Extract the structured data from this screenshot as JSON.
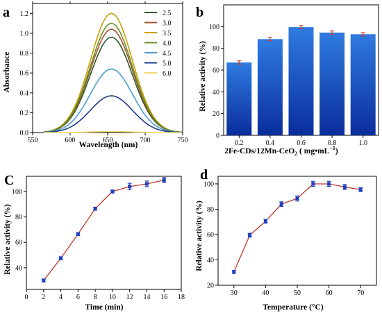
{
  "figure": {
    "panels": [
      {
        "letter": "a"
      },
      {
        "letter": "b"
      },
      {
        "letter": "C"
      },
      {
        "letter": "d"
      }
    ]
  },
  "chart_data": [
    {
      "panel": "a",
      "type": "line",
      "xlabel": "Wavelength (nm)",
      "ylabel": "Absorbance",
      "xlim": [
        550,
        750
      ],
      "ylim": [
        0,
        1.3
      ],
      "xticks": [
        550,
        600,
        650,
        700,
        750
      ],
      "yticks": [
        0.0,
        0.2,
        0.4,
        0.6,
        0.8,
        1.0,
        1.2
      ],
      "ytick_labels": [
        "0.0",
        "0.2",
        "0.4",
        "0.6",
        "0.8",
        "1.0",
        "1.2"
      ],
      "legend_position": "top-right",
      "peak_x": 655,
      "x_start": 565,
      "series": [
        {
          "name": "2.5",
          "color": "#2a5a2a",
          "peak": 0.96
        },
        {
          "name": "3.0",
          "color": "#a0522d",
          "peak": 1.04
        },
        {
          "name": "3.5",
          "color": "#c8a000",
          "peak": 1.2
        },
        {
          "name": "4.0",
          "color": "#6b8e23",
          "peak": 1.1
        },
        {
          "name": "4.5",
          "color": "#4a9cd0",
          "peak": 0.64
        },
        {
          "name": "5.0",
          "color": "#1f3b8a",
          "peak": 0.37
        },
        {
          "name": "6.0",
          "color": "#f5d76e",
          "peak": 0.01
        }
      ]
    },
    {
      "panel": "b",
      "type": "bar",
      "xlabel": "2Fe-CDs/12Mn-CeO",
      "xlabel_sub": "2",
      "xlabel_unit": " ( mg•mL",
      "xlabel_sup": "−1",
      "xlabel_end": ")",
      "ylabel": "Relative activity (%)",
      "categories": [
        "0.2",
        "0.4",
        "0.6",
        "0.8",
        "1.0"
      ],
      "values": [
        67,
        88.5,
        99.5,
        94.5,
        93
      ],
      "errors": [
        1.5,
        1.5,
        1.5,
        1.5,
        1.5
      ],
      "ylim": [
        0,
        120
      ],
      "yticks": [
        0,
        20,
        40,
        60,
        80,
        100
      ],
      "bar_color_top": "#2f7be0",
      "bar_color_bottom": "#0a2d9c",
      "error_color": "#d23a2a"
    },
    {
      "panel": "C",
      "type": "line",
      "xlabel": "Time (min)",
      "ylabel": "Relative activity (%)",
      "x": [
        2,
        4,
        6,
        8,
        10,
        12,
        14,
        16
      ],
      "y": [
        30,
        47.5,
        66.5,
        86.5,
        100,
        104,
        106,
        109
      ],
      "errors": [
        1.2,
        1.2,
        1.2,
        1.2,
        1.2,
        2.5,
        2.2,
        2.0
      ],
      "xlim": [
        0,
        18
      ],
      "ylim": [
        23,
        112
      ],
      "xticks": [
        0,
        2,
        4,
        6,
        8,
        10,
        12,
        14,
        16,
        18
      ],
      "yticks": [
        40,
        60,
        80,
        100
      ],
      "line_color": "#c0392b",
      "marker_color": "#1f3fbf"
    },
    {
      "panel": "d",
      "type": "line",
      "xlabel": "Temperature (°C)",
      "ylabel": "Relative activity (%)",
      "x": [
        30,
        35,
        40,
        45,
        50,
        55,
        60,
        65,
        70
      ],
      "y": [
        30.5,
        59.5,
        70.5,
        84,
        88.5,
        100,
        100,
        97.5,
        95.5
      ],
      "errors": [
        1.2,
        1.5,
        1.5,
        1.8,
        2.0,
        2.0,
        2.0,
        2.0,
        1.5
      ],
      "xlim": [
        25,
        75
      ],
      "ylim": [
        20,
        106
      ],
      "xticks": [
        30,
        40,
        50,
        60,
        70
      ],
      "yticks": [
        20,
        40,
        60,
        80,
        100
      ],
      "line_color": "#c0392b",
      "marker_color": "#1f3fbf"
    }
  ]
}
